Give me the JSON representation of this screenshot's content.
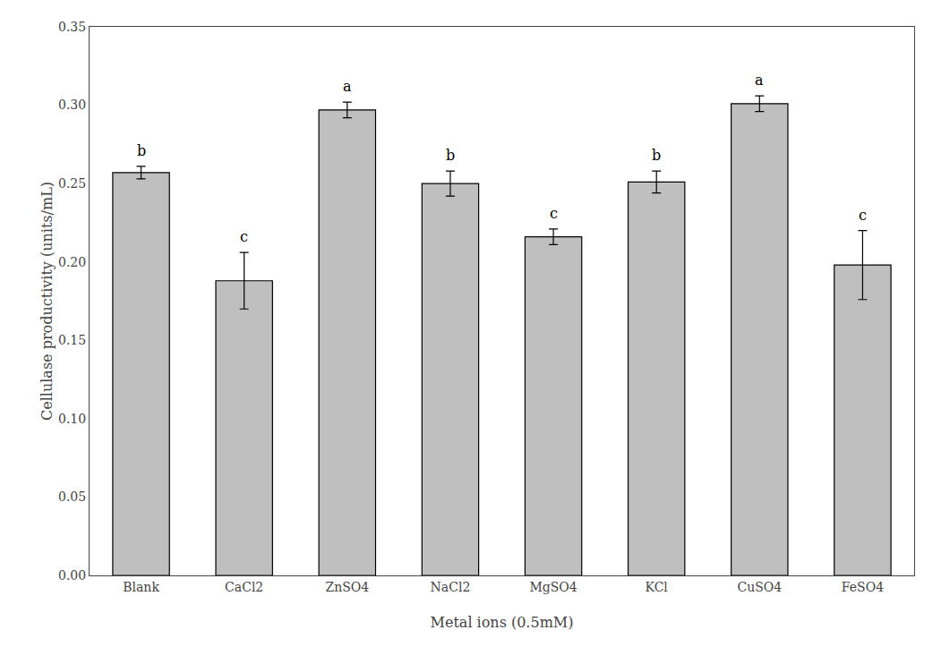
{
  "chart_data": {
    "type": "bar",
    "categories": [
      "Blank",
      "CaCl2",
      "ZnSO4",
      "NaCl2",
      "MgSO4",
      "KCl",
      "CuSO4",
      "FeSO4"
    ],
    "values": [
      0.257,
      0.188,
      0.297,
      0.25,
      0.216,
      0.251,
      0.301,
      0.198
    ],
    "errors": [
      0.004,
      0.018,
      0.005,
      0.008,
      0.005,
      0.007,
      0.005,
      0.022
    ],
    "annotations": [
      "b",
      "c",
      "a",
      "b",
      "c",
      "b",
      "a",
      "c"
    ],
    "color": "#c0bfbf",
    "xlabel": "Metal ions (0.5mM)",
    "ylabel": "Cellulase productivity (units/mL)",
    "ylim": [
      0.0,
      0.35
    ],
    "yticks": [
      {
        "value": 0.0,
        "label": "0.00"
      },
      {
        "value": 0.05,
        "label": "0.05"
      },
      {
        "value": 0.1,
        "label": "0.10"
      },
      {
        "value": 0.15,
        "label": "0.15"
      },
      {
        "value": 0.2,
        "label": "0.20"
      },
      {
        "value": 0.25,
        "label": "0.25"
      },
      {
        "value": 0.3,
        "label": "0.30"
      },
      {
        "value": 0.35,
        "label": "0.35"
      }
    ],
    "grid": false
  }
}
